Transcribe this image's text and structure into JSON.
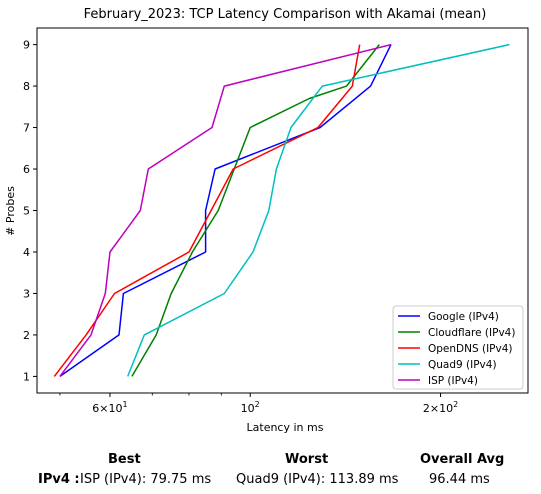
{
  "chart_data": {
    "type": "line",
    "title": "February_2023: TCP Latency Comparison with Akamai (mean)",
    "xlabel": "Latency in ms",
    "ylabel": "# Probes",
    "xscale": "log",
    "xlim": [
      46,
      275
    ],
    "ylim": [
      0.6,
      9.4
    ],
    "xticks": [
      {
        "value": 60,
        "base": "6",
        "exp": "1"
      },
      {
        "value": 100,
        "base": "10",
        "exp": "2"
      },
      {
        "value": 200,
        "base": "2",
        "exp": "2"
      }
    ],
    "yticks": [
      1,
      2,
      3,
      4,
      5,
      6,
      7,
      8,
      9
    ],
    "grid": false,
    "legend_position": "lower right",
    "series": [
      {
        "name": "Google (IPv4)",
        "color": "#0000ff",
        "x": [
          50,
          62,
          63,
          85,
          85,
          88,
          129,
          155,
          167
        ],
        "y": [
          1,
          2,
          3,
          4,
          5,
          6,
          7,
          8,
          9
        ]
      },
      {
        "name": "Cloudflare (IPv4)",
        "color": "#008000",
        "x": [
          65,
          71,
          75,
          81,
          89,
          100,
          124,
          142,
          160
        ],
        "y": [
          1,
          2,
          3,
          4,
          5,
          7,
          7.7,
          8,
          9
        ]
      },
      {
        "name": "OpenDNS (IPv4)",
        "color": "#ff0000",
        "x": [
          49,
          55,
          61,
          80,
          94,
          128,
          145,
          149
        ],
        "y": [
          1,
          2,
          3,
          4,
          6,
          7,
          8,
          9
        ]
      },
      {
        "name": "Quad9 (IPv4)",
        "color": "#00bfbf",
        "x": [
          64,
          68,
          91,
          101,
          107,
          110,
          116,
          130,
          257
        ],
        "y": [
          1,
          2,
          3,
          4,
          5,
          6,
          7,
          8,
          9
        ]
      },
      {
        "name": "ISP (IPv4)",
        "color": "#bf00bf",
        "x": [
          50,
          56,
          59,
          60,
          67,
          69,
          87,
          91,
          167
        ],
        "y": [
          1,
          2,
          3,
          4,
          5,
          6,
          7,
          8,
          9
        ]
      }
    ]
  },
  "summary": {
    "best_header": "Best",
    "worst_header": "Worst",
    "avg_header": "Overall Avg",
    "row_label": "IPv4 :",
    "best": "ISP (IPv4): 79.75 ms",
    "worst": "Quad9 (IPv4): 113.89 ms",
    "avg": "96.44 ms"
  }
}
